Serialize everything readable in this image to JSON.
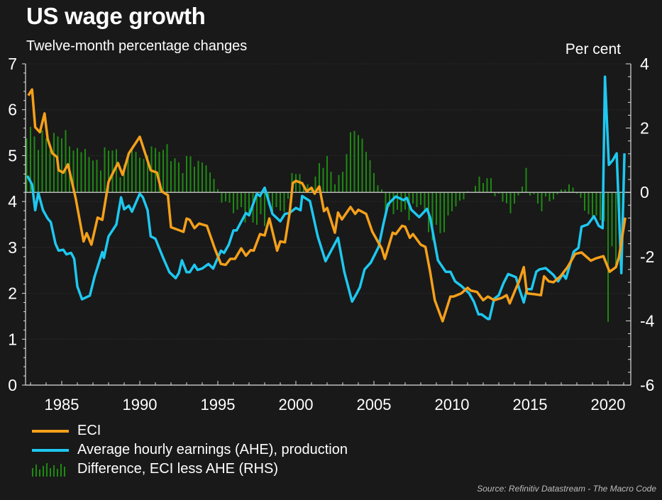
{
  "header": {
    "title": "US wage growth",
    "subtitle": "Twelve-month percentage changes",
    "rhs_unit": "Per cent"
  },
  "legend": {
    "eci": "ECI",
    "ahe": "Average hourly earnings (AHE), production",
    "diff": "Difference, ECI less AHE (RHS)"
  },
  "source": "Source: Refinitiv Datastream - The Macro Code",
  "colors": {
    "eci": "#f5a01a",
    "ahe": "#1ec8f0",
    "diff": "#1d8a12",
    "background": "#191919"
  },
  "chart_data": {
    "type": "line",
    "title": "US wage growth",
    "subtitle": "Twelve-month percentage changes",
    "xlabel": "",
    "ylabel": "",
    "ylabel_right": "Per cent",
    "xlim": [
      1982.7,
      2021.2
    ],
    "ylim": [
      0,
      7
    ],
    "ylim_right": [
      -6,
      4
    ],
    "x_ticks": [
      1985,
      1990,
      1995,
      2000,
      2005,
      2010,
      2015,
      2020
    ],
    "y_ticks": [
      0,
      1,
      2,
      3,
      4,
      5,
      6,
      7
    ],
    "y_ticks_right": [
      -6,
      -4,
      -2,
      0,
      2,
      4
    ],
    "grid": true,
    "legend_position": "bottom-left",
    "series": [
      {
        "name": "ECI",
        "axis": "left",
        "type": "line",
        "points": [
          [
            1982.86,
            6.31
          ],
          [
            1983.1,
            6.44
          ],
          [
            1983.3,
            5.62
          ],
          [
            1983.6,
            5.51
          ],
          [
            1983.9,
            5.92
          ],
          [
            1984.1,
            5.36
          ],
          [
            1984.4,
            5.05
          ],
          [
            1984.7,
            4.97
          ],
          [
            1984.8,
            4.68
          ],
          [
            1985.1,
            4.63
          ],
          [
            1985.4,
            4.81
          ],
          [
            1985.9,
            4.06
          ],
          [
            1986.4,
            3.13
          ],
          [
            1986.6,
            3.31
          ],
          [
            1986.9,
            3.06
          ],
          [
            1987.3,
            3.65
          ],
          [
            1987.6,
            3.6
          ],
          [
            1988.0,
            4.43
          ],
          [
            1988.6,
            4.84
          ],
          [
            1988.9,
            4.58
          ],
          [
            1989.3,
            5.05
          ],
          [
            1990.0,
            5.41
          ],
          [
            1990.7,
            4.68
          ],
          [
            1991.1,
            4.63
          ],
          [
            1991.4,
            4.22
          ],
          [
            1991.8,
            4.14
          ],
          [
            1992.0,
            3.44
          ],
          [
            1992.8,
            3.34
          ],
          [
            1993.0,
            3.63
          ],
          [
            1993.2,
            3.6
          ],
          [
            1993.5,
            3.42
          ],
          [
            1993.8,
            3.52
          ],
          [
            1994.3,
            3.47
          ],
          [
            1994.8,
            2.98
          ],
          [
            1995.2,
            2.64
          ],
          [
            1995.5,
            2.62
          ],
          [
            1995.8,
            2.75
          ],
          [
            1996.1,
            2.75
          ],
          [
            1996.5,
            2.98
          ],
          [
            1996.8,
            2.82
          ],
          [
            1997.1,
            2.94
          ],
          [
            1997.3,
            2.93
          ],
          [
            1997.7,
            3.29
          ],
          [
            1998.0,
            3.26
          ],
          [
            1998.3,
            3.63
          ],
          [
            1998.8,
            2.93
          ],
          [
            1999.0,
            3.13
          ],
          [
            1999.3,
            3.11
          ],
          [
            1999.6,
            3.75
          ],
          [
            1999.8,
            4.4
          ],
          [
            2000.0,
            4.45
          ],
          [
            2000.4,
            4.4
          ],
          [
            2000.7,
            4.22
          ],
          [
            2001.0,
            4.3
          ],
          [
            2001.2,
            4.17
          ],
          [
            2001.5,
            4.33
          ],
          [
            2001.8,
            3.79
          ],
          [
            2002.0,
            3.86
          ],
          [
            2002.5,
            3.32
          ],
          [
            2002.7,
            3.76
          ],
          [
            2002.95,
            3.61
          ],
          [
            2003.5,
            3.88
          ],
          [
            2003.8,
            3.73
          ],
          [
            2004.0,
            3.82
          ],
          [
            2004.5,
            3.73
          ],
          [
            2004.9,
            3.34
          ],
          [
            2005.5,
            2.98
          ],
          [
            2005.7,
            2.75
          ],
          [
            2006.2,
            3.32
          ],
          [
            2006.4,
            3.29
          ],
          [
            2006.8,
            3.47
          ],
          [
            2007.0,
            3.45
          ],
          [
            2007.3,
            3.21
          ],
          [
            2007.5,
            3.29
          ],
          [
            2008.0,
            3.06
          ],
          [
            2008.3,
            3.01
          ],
          [
            2008.6,
            2.47
          ],
          [
            2008.9,
            1.85
          ],
          [
            2009.4,
            1.39
          ],
          [
            2009.9,
            1.93
          ],
          [
            2010.1,
            1.93
          ],
          [
            2010.6,
            2.0
          ],
          [
            2011.0,
            2.12
          ],
          [
            2011.2,
            2.06
          ],
          [
            2011.6,
            2.03
          ],
          [
            2012.0,
            1.85
          ],
          [
            2012.3,
            1.93
          ],
          [
            2012.7,
            1.85
          ],
          [
            2013.2,
            1.9
          ],
          [
            2013.5,
            1.96
          ],
          [
            2013.7,
            1.78
          ],
          [
            2014.1,
            2.11
          ],
          [
            2014.3,
            2.26
          ],
          [
            2014.6,
            2.57
          ],
          [
            2014.8,
            2.0
          ],
          [
            2015.3,
            1.98
          ],
          [
            2015.7,
            1.96
          ],
          [
            2015.9,
            2.37
          ],
          [
            2016.2,
            2.26
          ],
          [
            2016.5,
            2.24
          ],
          [
            2016.95,
            2.37
          ],
          [
            2017.4,
            2.57
          ],
          [
            2017.9,
            2.86
          ],
          [
            2018.3,
            2.89
          ],
          [
            2018.9,
            2.71
          ],
          [
            2019.2,
            2.76
          ],
          [
            2019.7,
            2.81
          ],
          [
            2020.1,
            2.47
          ],
          [
            2020.5,
            2.57
          ],
          [
            2020.7,
            2.79
          ],
          [
            2021.1,
            3.65
          ]
        ]
      },
      {
        "name": "Average hourly earnings (AHE), production",
        "axis": "left",
        "type": "line",
        "points": [
          [
            1982.8,
            4.56
          ],
          [
            1983.1,
            4.37
          ],
          [
            1983.3,
            3.81
          ],
          [
            1983.5,
            4.19
          ],
          [
            1983.8,
            3.81
          ],
          [
            1984.1,
            3.63
          ],
          [
            1984.3,
            3.55
          ],
          [
            1984.6,
            3.08
          ],
          [
            1984.8,
            2.93
          ],
          [
            1985.1,
            2.95
          ],
          [
            1985.3,
            2.85
          ],
          [
            1985.6,
            2.88
          ],
          [
            1985.8,
            2.75
          ],
          [
            1986.0,
            2.15
          ],
          [
            1986.3,
            1.87
          ],
          [
            1986.8,
            1.95
          ],
          [
            1987.1,
            2.36
          ],
          [
            1987.6,
            2.9
          ],
          [
            1987.7,
            2.77
          ],
          [
            1988.0,
            3.24
          ],
          [
            1988.5,
            3.5
          ],
          [
            1988.8,
            4.09
          ],
          [
            1989.0,
            3.83
          ],
          [
            1989.3,
            3.91
          ],
          [
            1989.5,
            3.78
          ],
          [
            1990.0,
            4.17
          ],
          [
            1990.2,
            4.09
          ],
          [
            1990.5,
            3.81
          ],
          [
            1990.7,
            3.24
          ],
          [
            1991.0,
            3.19
          ],
          [
            1991.5,
            2.77
          ],
          [
            1991.9,
            2.46
          ],
          [
            1992.3,
            2.33
          ],
          [
            1992.5,
            2.44
          ],
          [
            1992.7,
            2.72
          ],
          [
            1993.0,
            2.46
          ],
          [
            1993.2,
            2.46
          ],
          [
            1993.5,
            2.62
          ],
          [
            1993.7,
            2.51
          ],
          [
            1994.0,
            2.54
          ],
          [
            1994.4,
            2.64
          ],
          [
            1994.7,
            2.54
          ],
          [
            1995.2,
            2.93
          ],
          [
            1995.4,
            2.88
          ],
          [
            1995.7,
            3.06
          ],
          [
            1996.0,
            3.37
          ],
          [
            1996.2,
            3.37
          ],
          [
            1996.8,
            3.75
          ],
          [
            1997.0,
            3.7
          ],
          [
            1997.5,
            4.17
          ],
          [
            1997.7,
            4.12
          ],
          [
            1998.0,
            4.3
          ],
          [
            1998.5,
            3.73
          ],
          [
            1999.0,
            3.57
          ],
          [
            1999.3,
            3.73
          ],
          [
            1999.6,
            3.75
          ],
          [
            2000.0,
            3.86
          ],
          [
            2000.3,
            3.81
          ],
          [
            2000.4,
            4.12
          ],
          [
            2000.9,
            4.01
          ],
          [
            2001.4,
            3.24
          ],
          [
            2001.9,
            2.7
          ],
          [
            2002.7,
            3.21
          ],
          [
            2003.1,
            2.47
          ],
          [
            2003.6,
            1.82
          ],
          [
            2003.9,
            2.0
          ],
          [
            2004.1,
            2.13
          ],
          [
            2004.4,
            2.52
          ],
          [
            2004.8,
            2.67
          ],
          [
            2005.3,
            3.01
          ],
          [
            2005.6,
            3.5
          ],
          [
            2005.9,
            3.94
          ],
          [
            2006.4,
            4.11
          ],
          [
            2006.9,
            4.03
          ],
          [
            2007.1,
            4.08
          ],
          [
            2007.4,
            3.82
          ],
          [
            2007.9,
            3.66
          ],
          [
            2008.4,
            3.84
          ],
          [
            2008.6,
            3.65
          ],
          [
            2009.1,
            2.72
          ],
          [
            2009.6,
            2.47
          ],
          [
            2009.9,
            2.47
          ],
          [
            2010.2,
            2.26
          ],
          [
            2010.6,
            2.16
          ],
          [
            2011.1,
            2.0
          ],
          [
            2011.4,
            1.82
          ],
          [
            2011.7,
            1.54
          ],
          [
            2011.9,
            1.54
          ],
          [
            2012.3,
            1.44
          ],
          [
            2012.4,
            1.44
          ],
          [
            2012.7,
            1.88
          ],
          [
            2013.0,
            1.96
          ],
          [
            2013.3,
            2.22
          ],
          [
            2013.6,
            2.42
          ],
          [
            2014.1,
            2.35
          ],
          [
            2014.3,
            2.11
          ],
          [
            2014.6,
            1.8
          ],
          [
            2014.8,
            2.09
          ],
          [
            2015.1,
            2.09
          ],
          [
            2015.4,
            2.47
          ],
          [
            2015.6,
            2.52
          ],
          [
            2016.0,
            2.55
          ],
          [
            2016.5,
            2.4
          ],
          [
            2016.8,
            2.26
          ],
          [
            2017.1,
            2.42
          ],
          [
            2017.3,
            2.32
          ],
          [
            2017.8,
            2.91
          ],
          [
            2018.1,
            2.99
          ],
          [
            2018.3,
            3.45
          ],
          [
            2018.7,
            3.5
          ],
          [
            2019.1,
            3.68
          ],
          [
            2019.4,
            3.47
          ],
          [
            2019.65,
            3.42
          ],
          [
            2019.8,
            6.72
          ],
          [
            2020.05,
            4.8
          ],
          [
            2020.3,
            4.9
          ],
          [
            2020.55,
            5.05
          ],
          [
            2020.85,
            2.44
          ],
          [
            2021.05,
            5.05
          ]
        ]
      },
      {
        "name": "Difference, ECI less AHE (RHS)",
        "axis": "right",
        "type": "bar",
        "x_start": 1982.75,
        "x_step": 0.25,
        "values": [
          1.68,
          2.04,
          1.74,
          1.32,
          1.93,
          1.68,
          1.32,
          1.85,
          1.74,
          1.68,
          1.94,
          1.43,
          1.3,
          1.38,
          1.25,
          1.35,
          1.1,
          0.99,
          1.01,
          0.68,
          1.4,
          1.3,
          1.3,
          1.34,
          0.47,
          0.86,
          1.06,
          1.38,
          1.26,
          1.08,
          1.04,
          1.15,
          1.43,
          1.38,
          1.26,
          1.32,
          1.5,
          0.97,
          1.06,
          0.93,
          0.6,
          1.13,
          1.12,
          0.8,
          0.98,
          0.93,
          0.84,
          0.62,
          0.42,
          0.1,
          -0.32,
          -0.28,
          -0.32,
          -0.65,
          -0.54,
          -0.46,
          -0.94,
          -0.65,
          -0.94,
          -1.01,
          -0.68,
          -1.05,
          -0.39,
          -0.68,
          -0.46,
          -0.57,
          -0.61,
          -0.2,
          0.6,
          0.57,
          0.57,
          0.16,
          0.25,
          0.16,
          0.49,
          0.91,
          0.76,
          1.13,
          0.64,
          0.25,
          0.54,
          0.64,
          1.19,
          1.87,
          1.91,
          1.78,
          1.67,
          1.26,
          1.0,
          0.6,
          0.22,
          0.09,
          -0.68,
          -0.44,
          -0.68,
          -0.54,
          -0.61,
          -0.54,
          -0.87,
          -0.35,
          -0.46,
          -0.39,
          -0.61,
          -1.24,
          -1.49,
          -1.01,
          -1.27,
          -1.24,
          -0.72,
          -0.59,
          -0.44,
          -0.26,
          -0.22,
          0.03,
          0,
          0.2,
          0.49,
          0.29,
          0.44,
          0.44,
          -0.12,
          -0.04,
          -0.29,
          -0.34,
          -0.65,
          -0.35,
          -0.1,
          0.18,
          0.76,
          -0.1,
          -0.06,
          -0.35,
          -0.59,
          -0.13,
          -0.28,
          -0.22,
          -0.06,
          0.09,
          0.09,
          0.25,
          0.15,
          -0.04,
          -0.17,
          -0.57,
          -0.68,
          -0.81,
          -0.72,
          -0.87,
          -0.9,
          -4.03,
          -1.68,
          -2.34,
          -1.46,
          0.38
        ]
      }
    ]
  }
}
